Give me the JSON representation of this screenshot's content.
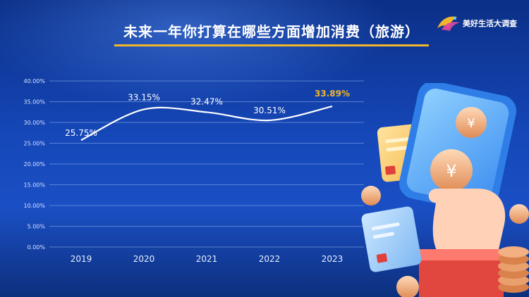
{
  "header": {
    "title": "未来一年你打算在哪些方面增加消费（旅游）"
  },
  "logo": {
    "text": "美好生活大调查"
  },
  "colors": {
    "highlight": "#f2b62a",
    "line": "#ffffff",
    "grid": "#7fa2e6"
  },
  "chart_data": {
    "type": "line",
    "categories": [
      "2019",
      "2020",
      "2021",
      "2022",
      "2023"
    ],
    "series": [
      {
        "values": [
          25.75,
          33.15,
          32.47,
          30.51,
          33.89
        ]
      }
    ],
    "data_labels": [
      "25.75%",
      "33.15%",
      "32.47%",
      "30.51%",
      "33.89%"
    ],
    "highlight_index": 4,
    "y_ticks": [
      "0.00%",
      "5.00%",
      "10.00%",
      "15.00%",
      "20.00%",
      "25.00%",
      "30.00%",
      "35.00%",
      "40.00%"
    ],
    "ylim": [
      0,
      40
    ],
    "grid": true,
    "title": "未来一年你打算在哪些方面增加消费（旅游）"
  }
}
